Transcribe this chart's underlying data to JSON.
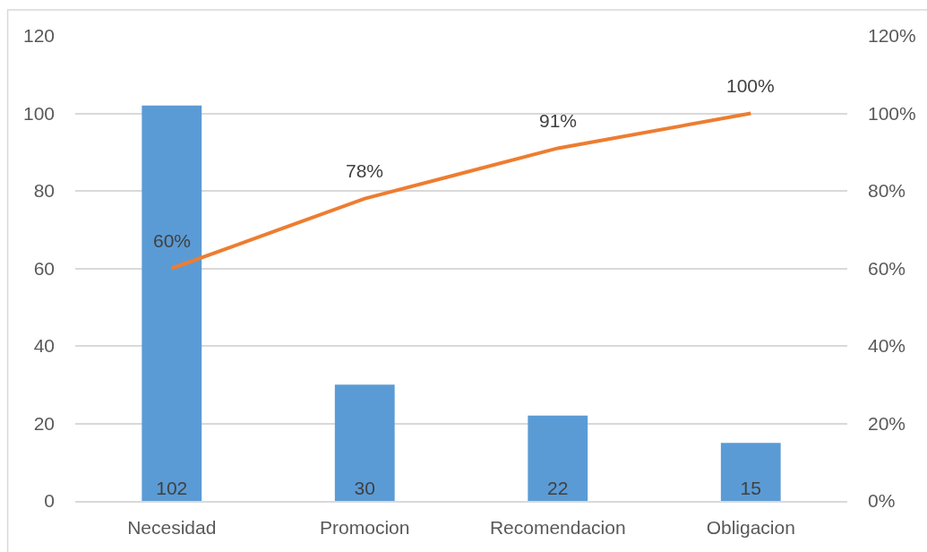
{
  "chart_data": {
    "type": "bar",
    "categories": [
      "Necesidad",
      "Promocion",
      "Recomendacion",
      "Obligacion"
    ],
    "series": [
      {
        "color": "#5b9bd5",
        "values": [
          102,
          30,
          22,
          15
        ],
        "value_labels": [
          "102",
          "30",
          "22",
          "15"
        ]
      },
      {
        "type": "line",
        "axis": "y2",
        "color": "#ed7d31",
        "values": [
          60,
          78,
          91,
          100
        ],
        "value_labels": [
          "60%",
          "78%",
          "91%",
          "100%"
        ]
      }
    ],
    "ylim": [
      0,
      120
    ],
    "yticks": [
      0,
      20,
      40,
      60,
      80,
      100,
      120
    ],
    "y2lim": [
      0,
      120
    ],
    "y2ticks": [
      {
        "value": 0,
        "label": "0%"
      },
      {
        "value": 20,
        "label": "20%"
      },
      {
        "value": 40,
        "label": "40%"
      },
      {
        "value": 60,
        "label": "60%"
      },
      {
        "value": 80,
        "label": "80%"
      },
      {
        "value": 100,
        "label": "100%"
      },
      {
        "value": 120,
        "label": "120%"
      }
    ],
    "grid": "y",
    "marker": "none",
    "line_style": "solid"
  }
}
